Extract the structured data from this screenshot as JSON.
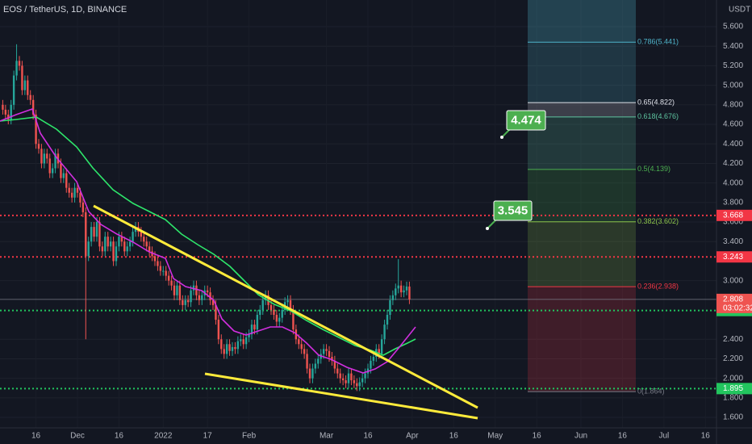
{
  "chart_data": {
    "type": "candlestick",
    "title": "EOS / TetherUS, 1D, BINANCE",
    "currency": "USDT",
    "up_color": "#26a69a",
    "down_color": "#ef5350",
    "grid": true,
    "xlim": [
      "2021-11-03",
      "2022-07-20"
    ],
    "ylim": [
      1.493,
      5.873
    ],
    "xticks": [
      {
        "value": "2021-11-16",
        "label": "16"
      },
      {
        "value": "2021-12-01",
        "label": "Dec"
      },
      {
        "value": "2021-12-16",
        "label": "16"
      },
      {
        "value": "2022-01-01",
        "label": "2022"
      },
      {
        "value": "2022-01-17",
        "label": "17"
      },
      {
        "value": "2022-02-01",
        "label": "Feb"
      },
      {
        "value": "2022-03-01",
        "label": "Mar"
      },
      {
        "value": "2022-03-16",
        "label": "16"
      },
      {
        "value": "2022-04-01",
        "label": "Apr"
      },
      {
        "value": "2022-04-16",
        "label": "16"
      },
      {
        "value": "2022-05-01",
        "label": "May"
      },
      {
        "value": "2022-05-16",
        "label": "16"
      },
      {
        "value": "2022-06-01",
        "label": "Jun"
      },
      {
        "value": "2022-06-16",
        "label": "16"
      },
      {
        "value": "2022-07-01",
        "label": "Jul"
      },
      {
        "value": "2022-07-16",
        "label": "16"
      }
    ],
    "yticks": [
      {
        "value": 5.6,
        "label": "5.600"
      },
      {
        "value": 5.4,
        "label": "5.400"
      },
      {
        "value": 5.2,
        "label": "5.200"
      },
      {
        "value": 5.0,
        "label": "5.000"
      },
      {
        "value": 4.8,
        "label": "4.800"
      },
      {
        "value": 4.6,
        "label": "4.600"
      },
      {
        "value": 4.4,
        "label": "4.400"
      },
      {
        "value": 4.2,
        "label": "4.200"
      },
      {
        "value": 4.0,
        "label": "4.000"
      },
      {
        "value": 3.8,
        "label": "3.800"
      },
      {
        "value": 3.6,
        "label": "3.600"
      },
      {
        "value": 3.4,
        "label": "3.400"
      },
      {
        "value": 3.0,
        "label": "3.000"
      },
      {
        "value": 2.4,
        "label": "2.400"
      },
      {
        "value": 2.2,
        "label": "2.200"
      },
      {
        "value": 2.0,
        "label": "2.000"
      },
      {
        "value": 1.8,
        "label": "1.800"
      },
      {
        "value": 1.6,
        "label": "1.600"
      }
    ],
    "x": [
      "2021-11-04",
      "2021-11-05",
      "2021-11-06",
      "2021-11-07",
      "2021-11-08",
      "2021-11-09",
      "2021-11-10",
      "2021-11-11",
      "2021-11-12",
      "2021-11-13",
      "2021-11-14",
      "2021-11-15",
      "2021-11-16",
      "2021-11-17",
      "2021-11-18",
      "2021-11-19",
      "2021-11-20",
      "2021-11-21",
      "2021-11-22",
      "2021-11-23",
      "2021-11-24",
      "2021-11-25",
      "2021-11-26",
      "2021-11-27",
      "2021-11-28",
      "2021-11-29",
      "2021-11-30",
      "2021-12-01",
      "2021-12-02",
      "2021-12-03",
      "2021-12-04",
      "2021-12-05",
      "2021-12-06",
      "2021-12-07",
      "2021-12-08",
      "2021-12-09",
      "2021-12-10",
      "2021-12-11",
      "2021-12-12",
      "2021-12-13",
      "2021-12-14",
      "2021-12-15",
      "2021-12-16",
      "2021-12-17",
      "2021-12-18",
      "2021-12-19",
      "2021-12-20",
      "2021-12-21",
      "2021-12-22",
      "2021-12-23",
      "2021-12-24",
      "2021-12-25",
      "2021-12-26",
      "2021-12-27",
      "2021-12-28",
      "2021-12-29",
      "2021-12-30",
      "2021-12-31",
      "2022-01-01",
      "2022-01-02",
      "2022-01-03",
      "2022-01-04",
      "2022-01-05",
      "2022-01-06",
      "2022-01-07",
      "2022-01-08",
      "2022-01-09",
      "2022-01-10",
      "2022-01-11",
      "2022-01-12",
      "2022-01-13",
      "2022-01-14",
      "2022-01-15",
      "2022-01-16",
      "2022-01-17",
      "2022-01-18",
      "2022-01-19",
      "2022-01-20",
      "2022-01-21",
      "2022-01-22",
      "2022-01-23",
      "2022-01-24",
      "2022-01-25",
      "2022-01-26",
      "2022-01-27",
      "2022-01-28",
      "2022-01-29",
      "2022-01-30",
      "2022-01-31",
      "2022-02-01",
      "2022-02-02",
      "2022-02-03",
      "2022-02-04",
      "2022-02-05",
      "2022-02-06",
      "2022-02-07",
      "2022-02-08",
      "2022-02-09",
      "2022-02-10",
      "2022-02-11",
      "2022-02-12",
      "2022-02-13",
      "2022-02-14",
      "2022-02-15",
      "2022-02-16",
      "2022-02-17",
      "2022-02-18",
      "2022-02-19",
      "2022-02-20",
      "2022-02-21",
      "2022-02-22",
      "2022-02-23",
      "2022-02-24",
      "2022-02-25",
      "2022-02-26",
      "2022-02-27",
      "2022-02-28",
      "2022-03-01",
      "2022-03-02",
      "2022-03-03",
      "2022-03-04",
      "2022-03-05",
      "2022-03-06",
      "2022-03-07",
      "2022-03-08",
      "2022-03-09",
      "2022-03-10",
      "2022-03-11",
      "2022-03-12",
      "2022-03-13",
      "2022-03-14",
      "2022-03-15",
      "2022-03-16",
      "2022-03-17",
      "2022-03-18",
      "2022-03-19",
      "2022-03-20",
      "2022-03-21",
      "2022-03-22",
      "2022-03-23",
      "2022-03-24",
      "2022-03-25",
      "2022-03-26",
      "2022-03-27",
      "2022-03-28",
      "2022-03-29",
      "2022-03-30",
      "2022-03-31"
    ],
    "open": [
      4.8,
      4.75,
      4.7,
      4.65,
      4.8,
      5.1,
      5.25,
      5.2,
      4.95,
      5.05,
      4.9,
      4.85,
      4.7,
      4.4,
      4.35,
      4.2,
      4.3,
      4.25,
      4.1,
      4.15,
      4.3,
      4.2,
      4.05,
      4.1,
      3.95,
      3.9,
      3.85,
      3.95,
      3.9,
      3.8,
      3.7,
      3.25,
      3.4,
      3.55,
      3.45,
      3.6,
      3.35,
      3.3,
      3.45,
      3.35,
      3.4,
      3.2,
      3.35,
      3.45,
      3.4,
      3.3,
      3.35,
      3.4,
      3.5,
      3.55,
      3.5,
      3.45,
      3.4,
      3.35,
      3.3,
      3.25,
      3.2,
      3.15,
      3.1,
      3.1,
      3.05,
      3.0,
      2.95,
      2.85,
      2.95,
      2.8,
      2.75,
      2.8,
      2.78,
      2.9,
      2.95,
      2.85,
      2.8,
      2.85,
      2.9,
      2.88,
      2.8,
      2.75,
      2.6,
      2.4,
      2.3,
      2.25,
      2.35,
      2.28,
      2.32,
      2.3,
      2.38,
      2.4,
      2.35,
      2.42,
      2.45,
      2.55,
      2.5,
      2.65,
      2.7,
      2.8,
      2.85,
      2.75,
      2.7,
      2.65,
      2.58,
      2.62,
      2.7,
      2.78,
      2.8,
      2.7,
      2.5,
      2.4,
      2.35,
      2.3,
      2.25,
      2.1,
      2.0,
      2.1,
      2.15,
      2.2,
      2.25,
      2.3,
      2.28,
      2.22,
      2.18,
      2.1,
      2.05,
      2.0,
      1.98,
      1.95,
      2.05,
      1.98,
      1.95,
      1.92,
      1.96,
      2.0,
      2.05,
      2.1,
      2.18,
      2.22,
      2.3,
      2.25,
      2.4,
      2.55,
      2.65,
      2.8,
      2.85,
      2.92,
      2.95,
      2.88,
      2.9,
      2.94
    ],
    "high": [
      4.85,
      4.8,
      4.75,
      4.85,
      5.15,
      5.42,
      5.3,
      5.25,
      5.1,
      5.1,
      4.95,
      4.9,
      4.75,
      4.45,
      4.4,
      4.35,
      4.35,
      4.3,
      4.2,
      4.35,
      4.35,
      4.25,
      4.15,
      4.15,
      4.0,
      3.95,
      4.0,
      4.0,
      3.95,
      3.85,
      3.75,
      3.45,
      3.6,
      3.6,
      3.65,
      3.65,
      3.4,
      3.5,
      3.5,
      3.45,
      3.45,
      3.4,
      3.5,
      3.5,
      3.45,
      3.4,
      3.45,
      3.55,
      3.6,
      3.6,
      3.55,
      3.5,
      3.45,
      3.4,
      3.35,
      3.3,
      3.25,
      3.2,
      3.15,
      3.15,
      3.1,
      3.05,
      3.0,
      3.0,
      3.0,
      2.85,
      2.85,
      2.85,
      2.95,
      3.0,
      3.0,
      2.9,
      2.9,
      2.95,
      2.95,
      2.93,
      2.85,
      2.8,
      2.65,
      2.45,
      2.35,
      2.4,
      2.4,
      2.37,
      2.37,
      2.43,
      2.45,
      2.45,
      2.47,
      2.5,
      2.6,
      2.6,
      2.7,
      2.75,
      2.85,
      2.9,
      2.9,
      2.8,
      2.75,
      2.7,
      2.67,
      2.75,
      2.83,
      2.85,
      2.85,
      2.75,
      2.55,
      2.45,
      2.4,
      2.35,
      2.3,
      2.15,
      2.15,
      2.2,
      2.25,
      2.3,
      2.35,
      2.35,
      2.33,
      2.27,
      2.23,
      2.15,
      2.1,
      2.05,
      2.03,
      2.1,
      2.1,
      2.03,
      2.0,
      2.01,
      2.05,
      2.1,
      2.15,
      2.23,
      2.27,
      2.35,
      2.35,
      2.45,
      2.6,
      2.7,
      2.85,
      2.9,
      2.97,
      3.22,
      3.0,
      2.95,
      2.99,
      2.99
    ],
    "low": [
      4.7,
      4.65,
      4.6,
      4.6,
      4.75,
      5.05,
      5.15,
      4.9,
      4.9,
      4.85,
      4.8,
      4.65,
      4.35,
      4.3,
      4.15,
      4.15,
      4.2,
      4.05,
      4.05,
      4.1,
      4.15,
      4.0,
      4.0,
      3.9,
      3.85,
      3.8,
      3.8,
      3.85,
      3.75,
      3.65,
      2.4,
      3.2,
      3.35,
      3.4,
      3.4,
      3.3,
      3.25,
      3.25,
      3.3,
      3.3,
      3.15,
      3.15,
      3.3,
      3.35,
      3.25,
      3.25,
      3.3,
      3.35,
      3.45,
      3.45,
      3.4,
      3.35,
      3.3,
      3.25,
      3.2,
      3.15,
      3.1,
      3.05,
      3.05,
      3.0,
      2.95,
      2.9,
      2.8,
      2.8,
      2.75,
      2.7,
      2.7,
      2.73,
      2.73,
      2.85,
      2.8,
      2.75,
      2.75,
      2.8,
      2.83,
      2.75,
      2.7,
      2.55,
      2.35,
      2.25,
      2.2,
      2.2,
      2.23,
      2.23,
      2.25,
      2.25,
      2.33,
      2.3,
      2.3,
      2.37,
      2.4,
      2.45,
      2.45,
      2.6,
      2.65,
      2.75,
      2.7,
      2.65,
      2.6,
      2.53,
      2.53,
      2.57,
      2.65,
      2.73,
      2.65,
      2.45,
      2.35,
      2.3,
      2.25,
      2.2,
      2.05,
      1.95,
      1.95,
      2.05,
      2.1,
      2.15,
      2.2,
      2.23,
      2.17,
      2.13,
      2.05,
      2.0,
      1.95,
      1.93,
      1.9,
      1.9,
      1.93,
      1.9,
      1.87,
      1.87,
      1.91,
      1.95,
      2.0,
      2.05,
      2.13,
      2.17,
      2.2,
      2.2,
      2.35,
      2.5,
      2.6,
      2.75,
      2.8,
      2.87,
      2.83,
      2.83,
      2.85,
      2.76
    ],
    "close": [
      4.75,
      4.7,
      4.65,
      4.8,
      5.1,
      5.25,
      5.2,
      4.95,
      5.05,
      4.9,
      4.85,
      4.7,
      4.4,
      4.35,
      4.2,
      4.3,
      4.25,
      4.1,
      4.15,
      4.3,
      4.2,
      4.05,
      4.1,
      3.95,
      3.9,
      3.85,
      3.95,
      3.9,
      3.8,
      3.7,
      3.25,
      3.4,
      3.55,
      3.45,
      3.6,
      3.35,
      3.3,
      3.45,
      3.35,
      3.4,
      3.2,
      3.35,
      3.45,
      3.4,
      3.3,
      3.35,
      3.4,
      3.5,
      3.55,
      3.5,
      3.45,
      3.4,
      3.35,
      3.3,
      3.25,
      3.2,
      3.15,
      3.1,
      3.1,
      3.05,
      3.0,
      2.95,
      2.85,
      2.95,
      2.8,
      2.75,
      2.8,
      2.78,
      2.9,
      2.95,
      2.85,
      2.8,
      2.85,
      2.9,
      2.88,
      2.8,
      2.75,
      2.6,
      2.4,
      2.3,
      2.25,
      2.35,
      2.28,
      2.32,
      2.3,
      2.38,
      2.4,
      2.35,
      2.42,
      2.45,
      2.55,
      2.5,
      2.65,
      2.7,
      2.8,
      2.85,
      2.75,
      2.7,
      2.65,
      2.58,
      2.62,
      2.7,
      2.78,
      2.8,
      2.7,
      2.5,
      2.4,
      2.35,
      2.3,
      2.25,
      2.1,
      2.0,
      2.1,
      2.15,
      2.2,
      2.25,
      2.3,
      2.28,
      2.22,
      2.18,
      2.1,
      2.05,
      2.0,
      1.98,
      1.95,
      2.05,
      1.98,
      1.95,
      1.92,
      1.96,
      2.0,
      2.05,
      2.1,
      2.18,
      2.22,
      2.3,
      2.25,
      2.4,
      2.55,
      2.65,
      2.8,
      2.85,
      2.92,
      2.95,
      2.88,
      2.9,
      2.94,
      2.808
    ],
    "countdown": "03:02:32",
    "hlines": [
      {
        "price": 3.668,
        "color": "#f23645"
      },
      {
        "price": 3.243,
        "color": "#f23645"
      },
      {
        "price": 2.694,
        "color": "#22c55e"
      },
      {
        "price": 1.895,
        "color": "#22c55e"
      }
    ],
    "fib_levels": [
      {
        "label": "0.786(5.441)",
        "price": 5.441,
        "color": "#4fb3c9"
      },
      {
        "label": "0.65(4.822)",
        "price": 4.822,
        "color": "#e0e3eb"
      },
      {
        "label": "0.618(4.676)",
        "price": 4.676,
        "color": "#5ec4a0"
      },
      {
        "label": "0.5(4.139)",
        "price": 4.139,
        "color": "#4caf50"
      },
      {
        "label": "0.382(3.602)",
        "price": 3.602,
        "color": "#8bc34a"
      },
      {
        "label": "0.236(2.938)",
        "price": 2.938,
        "color": "#f23645"
      },
      {
        "label": "0(1.864)",
        "price": 1.864,
        "color": "#787b86"
      }
    ],
    "annotations": [
      "4.474",
      "3.545"
    ]
  }
}
